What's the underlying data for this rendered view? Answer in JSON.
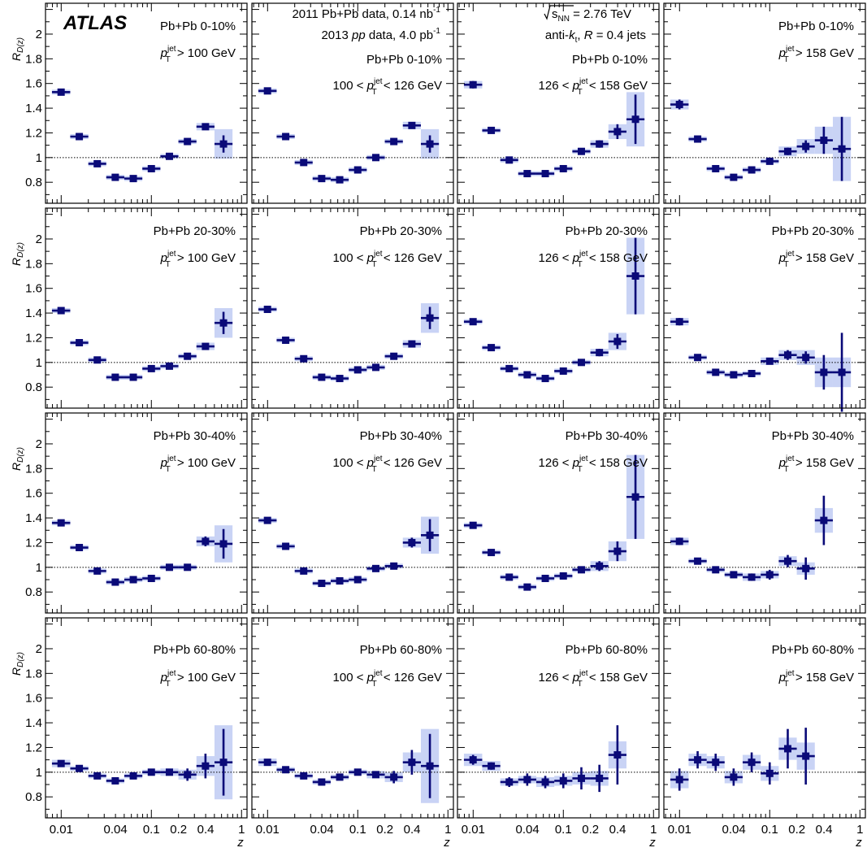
{
  "experiment_label": "ATLAS",
  "header_lines": {
    "data_line_1": "2011 Pb+Pb data, 0.14 nb",
    "data_line_1_sup": "-1",
    "data_line_2_pre": "2013 ",
    "data_line_2_pp": "pp",
    "data_line_2_post": " data, 4.0 pb",
    "data_line_2_sup": "-1",
    "energy_s": "s",
    "energy_sub": "NN",
    "energy_post": " = 2.76 TeV",
    "jet_pre": "anti-",
    "jet_k": "k",
    "jet_t": "t",
    "jet_mid": ", ",
    "jet_R": "R",
    "jet_post": " = 0.4 jets"
  },
  "colors": {
    "marker": "#0a0a78",
    "band": "#c9d3f5",
    "frame": "#000000"
  },
  "chart_data": {
    "type": "scatter",
    "xlabel": "z",
    "ylabel": "R",
    "ylabel_sub": "D(z)",
    "xscale": "log",
    "xlim": [
      0.0067,
      1.15
    ],
    "ylim": [
      0.63,
      2.25
    ],
    "x_ticks": [
      "0.01",
      "0.04",
      "0.1",
      "0.2",
      "0.4",
      "1"
    ],
    "y_ticks": [
      "0.8",
      "1",
      "1.2",
      "1.4",
      "1.6",
      "1.8",
      "2"
    ],
    "reference_line": 1,
    "z_bins": [
      [
        0.0079,
        0.0126
      ],
      [
        0.0126,
        0.02
      ],
      [
        0.02,
        0.0316
      ],
      [
        0.0316,
        0.0501
      ],
      [
        0.0501,
        0.0794
      ],
      [
        0.0794,
        0.1259
      ],
      [
        0.1259,
        0.1995
      ],
      [
        0.1995,
        0.3162
      ],
      [
        0.3162,
        0.5012
      ],
      [
        0.5012,
        0.7943
      ],
      [
        0.7943,
        1.0
      ]
    ],
    "centrality_labels": [
      "Pb+Pb 0-10%",
      "Pb+Pb 20-30%",
      "Pb+Pb 30-40%",
      "Pb+Pb 60-80%"
    ],
    "pt_labels": [
      {
        "pre": "",
        "post": " > 100 GeV"
      },
      {
        "pre": "100 < ",
        "post": " < 126 GeV"
      },
      {
        "pre": "126 < ",
        "post": " < 158 GeV"
      },
      {
        "pre": "",
        "post": " > 158 GeV"
      }
    ],
    "pt_symbol": {
      "p": "p",
      "sup": "jet",
      "sub": "T"
    },
    "panels": [
      [
        {
          "values": [
            1.53,
            1.17,
            0.95,
            0.84,
            0.83,
            0.91,
            1.01,
            1.13,
            1.25,
            1.11
          ],
          "stat": [
            0.01,
            0.01,
            0.01,
            0.01,
            0.01,
            0.01,
            0.01,
            0.01,
            0.02,
            0.07
          ],
          "sys": [
            0.02,
            0.02,
            0.02,
            0.02,
            0.02,
            0.02,
            0.02,
            0.02,
            0.03,
            0.12
          ]
        },
        {
          "values": [
            1.54,
            1.17,
            0.96,
            0.83,
            0.82,
            0.9,
            1.0,
            1.13,
            1.26,
            1.11
          ],
          "stat": [
            0.01,
            0.01,
            0.01,
            0.01,
            0.01,
            0.01,
            0.01,
            0.01,
            0.02,
            0.07
          ],
          "sys": [
            0.02,
            0.02,
            0.02,
            0.02,
            0.02,
            0.02,
            0.02,
            0.02,
            0.03,
            0.12
          ]
        },
        {
          "values": [
            1.59,
            1.22,
            0.98,
            0.87,
            0.87,
            0.91,
            1.05,
            1.11,
            1.21,
            1.31
          ],
          "stat": [
            0.03,
            0.01,
            0.01,
            0.01,
            0.01,
            0.01,
            0.01,
            0.03,
            0.06,
            0.2
          ],
          "sys": [
            0.03,
            0.02,
            0.02,
            0.02,
            0.02,
            0.02,
            0.02,
            0.03,
            0.06,
            0.22
          ]
        },
        {
          "values": [
            1.43,
            1.15,
            0.91,
            0.84,
            0.9,
            0.97,
            1.05,
            1.09,
            1.14,
            1.07
          ],
          "stat": [
            0.04,
            0.01,
            0.01,
            0.01,
            0.01,
            0.01,
            0.03,
            0.05,
            0.11,
            0.26
          ],
          "sys": [
            0.04,
            0.02,
            0.02,
            0.02,
            0.02,
            0.02,
            0.04,
            0.06,
            0.11,
            0.26
          ]
        }
      ],
      [
        {
          "values": [
            1.42,
            1.16,
            1.02,
            0.88,
            0.88,
            0.95,
            0.97,
            1.05,
            1.13,
            1.32
          ],
          "stat": [
            0.01,
            0.01,
            0.01,
            0.01,
            0.01,
            0.01,
            0.01,
            0.01,
            0.02,
            0.09
          ],
          "sys": [
            0.02,
            0.02,
            0.02,
            0.02,
            0.02,
            0.02,
            0.02,
            0.02,
            0.03,
            0.12
          ]
        },
        {
          "values": [
            1.43,
            1.18,
            1.03,
            0.88,
            0.87,
            0.94,
            0.96,
            1.05,
            1.15,
            1.36
          ],
          "stat": [
            0.01,
            0.01,
            0.01,
            0.01,
            0.01,
            0.01,
            0.01,
            0.01,
            0.02,
            0.09
          ],
          "sys": [
            0.02,
            0.02,
            0.02,
            0.02,
            0.02,
            0.02,
            0.02,
            0.02,
            0.03,
            0.12
          ]
        },
        {
          "values": [
            1.33,
            1.12,
            0.95,
            0.9,
            0.87,
            0.93,
            1.0,
            1.08,
            1.17,
            1.7
          ],
          "stat": [
            0.02,
            0.01,
            0.01,
            0.01,
            0.01,
            0.01,
            0.01,
            0.03,
            0.06,
            0.31
          ],
          "sys": [
            0.02,
            0.02,
            0.02,
            0.02,
            0.02,
            0.02,
            0.02,
            0.03,
            0.07,
            0.31
          ]
        },
        {
          "values": [
            1.33,
            1.04,
            0.92,
            0.9,
            0.91,
            1.01,
            1.06,
            1.04,
            0.92,
            0.92
          ],
          "stat": [
            0.03,
            0.01,
            0.01,
            0.01,
            0.01,
            0.02,
            0.04,
            0.05,
            0.14,
            0.32
          ],
          "sys": [
            0.03,
            0.02,
            0.02,
            0.02,
            0.02,
            0.03,
            0.04,
            0.06,
            0.12,
            0.12
          ]
        }
      ],
      [
        {
          "values": [
            1.36,
            1.16,
            0.97,
            0.88,
            0.9,
            0.91,
            1.0,
            1.0,
            1.21,
            1.19
          ],
          "stat": [
            0.01,
            0.01,
            0.01,
            0.01,
            0.01,
            0.01,
            0.01,
            0.01,
            0.04,
            0.12
          ],
          "sys": [
            0.02,
            0.02,
            0.02,
            0.02,
            0.02,
            0.02,
            0.02,
            0.02,
            0.04,
            0.15
          ]
        },
        {
          "values": [
            1.38,
            1.17,
            0.97,
            0.87,
            0.89,
            0.9,
            0.99,
            1.01,
            1.2,
            1.26
          ],
          "stat": [
            0.01,
            0.01,
            0.01,
            0.01,
            0.01,
            0.01,
            0.01,
            0.01,
            0.04,
            0.13
          ],
          "sys": [
            0.02,
            0.02,
            0.02,
            0.02,
            0.02,
            0.02,
            0.02,
            0.02,
            0.04,
            0.15
          ]
        },
        {
          "values": [
            1.34,
            1.12,
            0.92,
            0.84,
            0.91,
            0.93,
            0.98,
            1.01,
            1.13,
            1.57
          ],
          "stat": [
            0.02,
            0.01,
            0.01,
            0.01,
            0.01,
            0.01,
            0.02,
            0.04,
            0.08,
            0.34
          ],
          "sys": [
            0.02,
            0.02,
            0.02,
            0.02,
            0.02,
            0.02,
            0.02,
            0.04,
            0.08,
            0.34
          ]
        },
        {
          "values": [
            1.21,
            1.05,
            0.98,
            0.94,
            0.92,
            0.94,
            1.05,
            0.99,
            1.38
          ],
          "stat": [
            0.03,
            0.02,
            0.02,
            0.02,
            0.03,
            0.04,
            0.05,
            0.09,
            0.2
          ],
          "sys": [
            0.03,
            0.02,
            0.02,
            0.02,
            0.03,
            0.03,
            0.04,
            0.05,
            0.1
          ]
        }
      ],
      [
        {
          "values": [
            1.07,
            1.03,
            0.97,
            0.93,
            0.97,
            1.0,
            1.0,
            0.98,
            1.05,
            1.08
          ],
          "stat": [
            0.02,
            0.01,
            0.01,
            0.01,
            0.01,
            0.01,
            0.02,
            0.05,
            0.1,
            0.27
          ],
          "sys": [
            0.03,
            0.02,
            0.02,
            0.02,
            0.02,
            0.02,
            0.03,
            0.04,
            0.08,
            0.3
          ]
        },
        {
          "values": [
            1.08,
            1.02,
            0.97,
            0.92,
            0.96,
            1.0,
            0.98,
            0.96,
            1.08,
            1.05
          ],
          "stat": [
            0.02,
            0.01,
            0.01,
            0.01,
            0.01,
            0.01,
            0.02,
            0.05,
            0.1,
            0.26
          ],
          "sys": [
            0.03,
            0.02,
            0.02,
            0.02,
            0.02,
            0.02,
            0.03,
            0.04,
            0.08,
            0.3
          ]
        },
        {
          "values": [
            1.1,
            1.05,
            0.92,
            0.94,
            0.92,
            0.93,
            0.95,
            0.95,
            1.14
          ],
          "stat": [
            0.04,
            0.03,
            0.04,
            0.05,
            0.05,
            0.06,
            0.09,
            0.11,
            0.24
          ],
          "sys": [
            0.05,
            0.04,
            0.03,
            0.03,
            0.04,
            0.04,
            0.05,
            0.06,
            0.11
          ]
        },
        {
          "values": [
            0.94,
            1.1,
            1.08,
            0.96,
            1.08,
            0.99,
            1.19,
            1.13
          ],
          "stat": [
            0.09,
            0.07,
            0.07,
            0.07,
            0.08,
            0.09,
            0.16,
            0.23
          ],
          "sys": [
            0.07,
            0.05,
            0.05,
            0.05,
            0.06,
            0.06,
            0.09,
            0.11
          ]
        }
      ]
    ]
  }
}
